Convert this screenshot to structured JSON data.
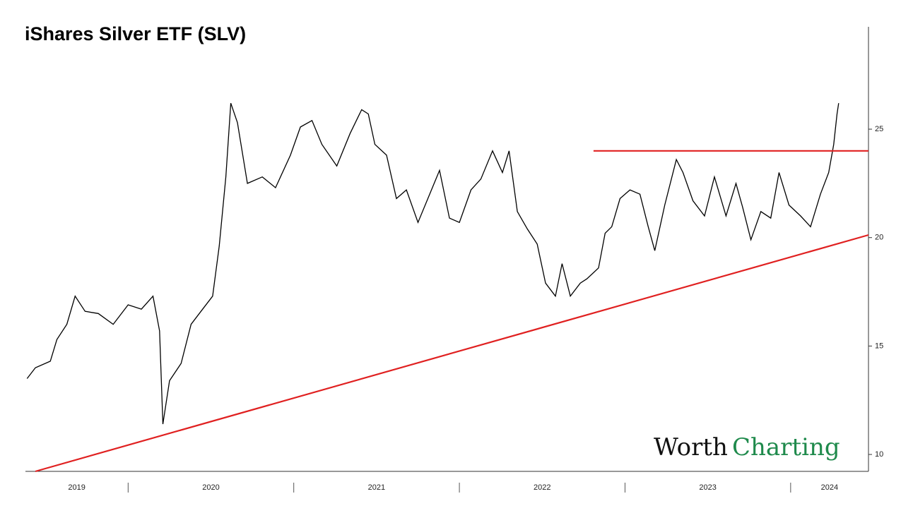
{
  "chart_data": {
    "type": "line",
    "title": "iShares Silver ETF (SLV)",
    "x": [
      2019.39,
      2019.44,
      2019.53,
      2019.57,
      2019.63,
      2019.68,
      2019.74,
      2019.82,
      2019.91,
      2020.0,
      2020.08,
      2020.15,
      2020.19,
      2020.21,
      2020.25,
      2020.32,
      2020.38,
      2020.44,
      2020.51,
      2020.55,
      2020.59,
      2020.62,
      2020.66,
      2020.72,
      2020.81,
      2020.89,
      2020.98,
      2021.04,
      2021.11,
      2021.17,
      2021.26,
      2021.34,
      2021.41,
      2021.45,
      2021.49,
      2021.56,
      2021.62,
      2021.68,
      2021.75,
      2021.81,
      2021.88,
      2021.94,
      2022.0,
      2022.07,
      2022.13,
      2022.2,
      2022.26,
      2022.3,
      2022.35,
      2022.41,
      2022.47,
      2022.52,
      2022.58,
      2022.62,
      2022.67,
      2022.73,
      2022.77,
      2022.84,
      2022.88,
      2022.92,
      2022.97,
      2023.03,
      2023.09,
      2023.14,
      2023.18,
      2023.24,
      2023.31,
      2023.35,
      2023.41,
      2023.48,
      2023.54,
      2023.61,
      2023.67,
      2023.71,
      2023.76,
      2023.82,
      2023.88,
      2023.93,
      2023.99,
      2024.06,
      2024.12,
      2024.18,
      2024.23,
      2024.26,
      2024.28,
      2024.29
    ],
    "values": [
      13.5,
      14.0,
      14.3,
      15.3,
      16.0,
      17.3,
      16.6,
      16.5,
      16.0,
      16.9,
      16.7,
      17.3,
      15.7,
      11.4,
      13.4,
      14.2,
      16.0,
      16.6,
      17.3,
      19.6,
      22.8,
      26.2,
      25.3,
      22.5,
      22.8,
      22.3,
      23.8,
      25.1,
      25.4,
      24.3,
      23.3,
      24.8,
      25.9,
      25.7,
      24.3,
      23.8,
      21.8,
      22.2,
      20.7,
      21.8,
      23.1,
      20.9,
      20.7,
      22.2,
      22.7,
      24.0,
      23.0,
      24.0,
      21.2,
      20.4,
      19.7,
      17.9,
      17.3,
      18.8,
      17.3,
      17.9,
      18.1,
      18.6,
      20.2,
      20.5,
      21.8,
      22.2,
      22.0,
      20.5,
      19.4,
      21.5,
      23.6,
      23.0,
      21.7,
      21.0,
      22.8,
      21.0,
      22.5,
      21.4,
      19.9,
      21.2,
      20.9,
      23.0,
      21.5,
      21.0,
      20.5,
      22.0,
      23.0,
      24.3,
      25.7,
      26.2
    ],
    "color": "#000000",
    "lines": [
      {
        "color": "#e02020",
        "x": [
          2019.44,
          2024.47
        ],
        "y": [
          9.22,
          20.12
        ]
      },
      {
        "color": "#e02020",
        "x": [
          2022.81,
          2024.47
        ],
        "y": [
          24.0,
          24.0
        ]
      }
    ],
    "xlim": [
      2019.38,
      2024.47
    ],
    "xticks": [
      2019,
      2020,
      2021,
      2022,
      2023,
      2024
    ],
    "ylim": [
      9.22,
      29.72
    ],
    "yticks": [
      10,
      15,
      20,
      25
    ]
  },
  "logo": {
    "word1": "Worth",
    "word2": "Charting"
  }
}
